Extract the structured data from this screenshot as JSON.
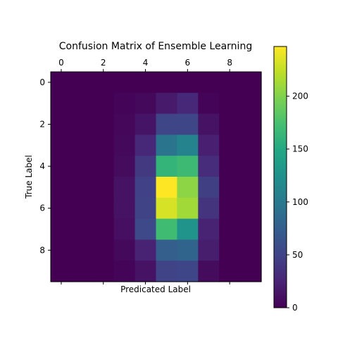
{
  "chart_data": {
    "type": "heatmap",
    "title": "Confusion Matrix of Ensemble Learning",
    "xlabel": "Predicated Label",
    "ylabel": "True Label",
    "rows": 10,
    "cols": 10,
    "x_tick_values": [
      0,
      2,
      4,
      6,
      8
    ],
    "x_tick_labels": [
      "0",
      "2",
      "4",
      "6",
      "8"
    ],
    "y_tick_values": [
      0,
      2,
      4,
      6,
      8
    ],
    "y_tick_labels": [
      "0",
      "2",
      "4",
      "6",
      "8"
    ],
    "x_ticks_position": "top",
    "colormap": "viridis",
    "value_range": [
      0,
      247
    ],
    "colorbar_ticks": [
      0,
      50,
      100,
      150,
      200
    ],
    "colorbar_tick_labels": [
      "0",
      "50",
      "100",
      "150",
      "200"
    ],
    "grid": false,
    "values": [
      [
        0,
        0,
        0,
        0,
        0,
        0,
        0,
        0,
        0,
        0
      ],
      [
        0,
        0,
        0,
        3,
        6,
        18,
        28,
        3,
        0,
        0
      ],
      [
        0,
        0,
        0,
        4,
        14,
        52,
        52,
        12,
        0,
        0
      ],
      [
        0,
        0,
        0,
        6,
        28,
        95,
        110,
        22,
        0,
        0
      ],
      [
        0,
        0,
        0,
        8,
        42,
        162,
        168,
        32,
        0,
        0
      ],
      [
        0,
        0,
        0,
        12,
        48,
        247,
        205,
        46,
        0,
        0
      ],
      [
        0,
        0,
        0,
        12,
        50,
        232,
        212,
        38,
        0,
        0
      ],
      [
        0,
        0,
        0,
        10,
        55,
        170,
        128,
        24,
        0,
        0
      ],
      [
        0,
        0,
        0,
        6,
        25,
        75,
        80,
        20,
        0,
        0
      ],
      [
        0,
        0,
        0,
        2,
        12,
        50,
        52,
        8,
        0,
        0
      ]
    ]
  }
}
